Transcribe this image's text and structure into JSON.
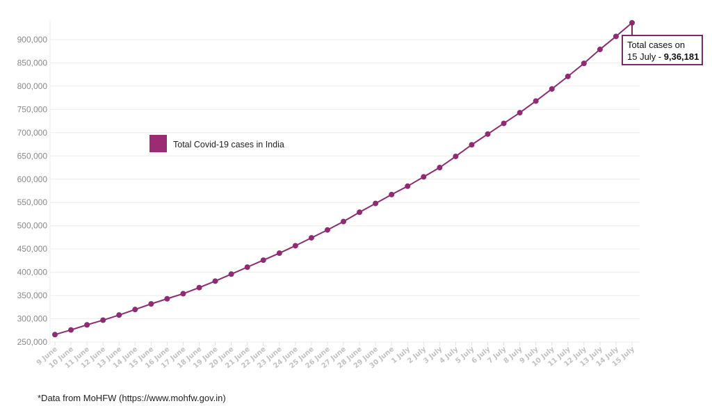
{
  "chart_data": {
    "type": "line",
    "title": "",
    "xlabel": "",
    "ylabel": "",
    "ylim": [
      250000,
      936181
    ],
    "yticks": [
      250000,
      300000,
      350000,
      400000,
      450000,
      500000,
      550000,
      600000,
      650000,
      700000,
      750000,
      800000,
      850000,
      900000
    ],
    "ytick_labels": [
      "250,000",
      "300,000",
      "350,000",
      "400,000",
      "450,000",
      "500,000",
      "550,000",
      "600,000",
      "650,000",
      "700,000",
      "750,000",
      "800,000",
      "850,000",
      "900,000"
    ],
    "grid": true,
    "legend_position": "upper-left-inside",
    "categories": [
      "9 June",
      "10 June",
      "11 June",
      "12 June",
      "13 June",
      "14 June",
      "15 June",
      "16 June",
      "17 June",
      "18 June",
      "19 June",
      "20 June",
      "21 June",
      "22 June",
      "23 June",
      "24 June",
      "25 June",
      "26 June",
      "27 June",
      "28 June",
      "29 June",
      "30 June",
      "1 July",
      "2 July",
      "3 July",
      "4 July",
      "5 July",
      "6 July",
      "7 July",
      "8 July",
      "9 July",
      "10 July",
      "11 July",
      "12 July",
      "13 July",
      "14 July",
      "15 July"
    ],
    "series": [
      {
        "name": "Total Covid-19 cases in India",
        "color": "#8e2b73",
        "values": [
          266000,
          276000,
          287000,
          297000,
          308000,
          320000,
          332000,
          343000,
          354000,
          367000,
          381000,
          396000,
          411000,
          426000,
          441000,
          457000,
          474000,
          491000,
          509000,
          529000,
          548000,
          567000,
          585000,
          605000,
          625000,
          649000,
          674000,
          697000,
          720000,
          743000,
          768000,
          794000,
          821000,
          849000,
          879000,
          907000,
          936181
        ]
      }
    ],
    "annotation": {
      "text_line1": "Total cases on",
      "text_line2_prefix": "15 July - ",
      "text_line2_value": "9,36,181",
      "target": "15 July"
    }
  },
  "legend": {
    "label": "Total Covid-19 cases in India",
    "swatch_color": "#9b2c74"
  },
  "footnote": "*Data from MoHFW (https://www.mohfw.gov.in)"
}
